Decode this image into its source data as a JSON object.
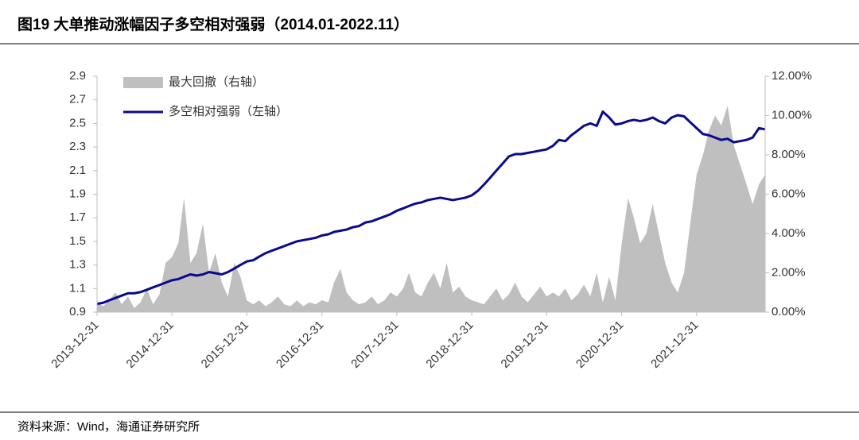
{
  "title": "图19 大单推动涨幅因子多空相对强弱（2014.01-2022.11）",
  "source": "资料来源：Wind，海通证券研究所",
  "chart_data": {
    "type": "line",
    "x": [
      "2013-12-31",
      "2014-01-31",
      "2014-02-28",
      "2014-03-31",
      "2014-04-30",
      "2014-05-31",
      "2014-06-30",
      "2014-07-31",
      "2014-08-31",
      "2014-09-30",
      "2014-10-31",
      "2014-11-30",
      "2014-12-31",
      "2015-01-31",
      "2015-02-28",
      "2015-03-31",
      "2015-04-30",
      "2015-05-31",
      "2015-06-30",
      "2015-07-31",
      "2015-08-31",
      "2015-09-30",
      "2015-10-31",
      "2015-11-30",
      "2015-12-31",
      "2016-01-31",
      "2016-02-29",
      "2016-03-31",
      "2016-04-30",
      "2016-05-31",
      "2016-06-30",
      "2016-07-31",
      "2016-08-31",
      "2016-09-30",
      "2016-10-31",
      "2016-11-30",
      "2016-12-31",
      "2017-01-31",
      "2017-02-28",
      "2017-03-31",
      "2017-04-30",
      "2017-05-31",
      "2017-06-30",
      "2017-07-31",
      "2017-08-31",
      "2017-09-30",
      "2017-10-31",
      "2017-11-30",
      "2017-12-31",
      "2018-01-31",
      "2018-02-28",
      "2018-03-31",
      "2018-04-30",
      "2018-05-31",
      "2018-06-30",
      "2018-07-31",
      "2018-08-31",
      "2018-09-30",
      "2018-10-31",
      "2018-11-30",
      "2018-12-31",
      "2019-01-31",
      "2019-02-28",
      "2019-03-31",
      "2019-04-30",
      "2019-05-31",
      "2019-06-30",
      "2019-07-31",
      "2019-08-31",
      "2019-09-30",
      "2019-10-31",
      "2019-11-30",
      "2019-12-31",
      "2020-01-31",
      "2020-02-29",
      "2020-03-31",
      "2020-04-30",
      "2020-05-31",
      "2020-06-30",
      "2020-07-31",
      "2020-08-31",
      "2020-09-30",
      "2020-10-31",
      "2020-11-30",
      "2020-12-31",
      "2021-01-31",
      "2021-02-28",
      "2021-03-31",
      "2021-04-30",
      "2021-05-31",
      "2021-06-30",
      "2021-07-31",
      "2021-08-31",
      "2021-09-30",
      "2021-10-31",
      "2021-11-30",
      "2021-12-31",
      "2022-01-31",
      "2022-02-28",
      "2022-03-31",
      "2022-04-30",
      "2022-05-31",
      "2022-06-30",
      "2022-07-31",
      "2022-08-31",
      "2022-09-30",
      "2022-10-31",
      "2022-11-30"
    ],
    "series": [
      {
        "name": "最大回撤（右轴）",
        "type": "area",
        "axis": "y2",
        "color": "#bfbfbf",
        "values": [
          0.5,
          0.3,
          0.6,
          1.0,
          0.4,
          0.8,
          0.2,
          0.5,
          1.2,
          0.4,
          0.9,
          2.5,
          2.8,
          3.5,
          5.8,
          2.5,
          3.0,
          4.5,
          2.0,
          3.0,
          1.5,
          0.8,
          2.5,
          1.8,
          0.6,
          0.4,
          0.6,
          0.3,
          0.5,
          0.8,
          0.4,
          0.3,
          0.6,
          0.3,
          0.5,
          0.4,
          0.6,
          0.5,
          1.5,
          2.2,
          1.0,
          0.6,
          0.4,
          0.5,
          0.8,
          0.4,
          0.6,
          1.0,
          0.8,
          1.2,
          2.0,
          1.0,
          0.8,
          1.5,
          2.0,
          1.2,
          2.5,
          1.0,
          1.3,
          0.8,
          0.6,
          0.5,
          0.4,
          0.8,
          1.2,
          0.6,
          0.9,
          1.5,
          0.8,
          0.5,
          0.9,
          1.3,
          0.8,
          1.0,
          0.8,
          1.2,
          0.6,
          0.9,
          1.4,
          0.8,
          2.0,
          0.5,
          1.8,
          0.6,
          3.5,
          5.8,
          4.8,
          3.5,
          4.0,
          5.5,
          4.0,
          2.5,
          1.5,
          1.0,
          2.0,
          4.5,
          7.0,
          8.0,
          9.2,
          10.0,
          9.5,
          10.5,
          8.5,
          7.5,
          6.5,
          5.5,
          6.5,
          7.0
        ]
      },
      {
        "name": "多空相对强弱（左轴）",
        "type": "line",
        "color": "#0a0a8c",
        "values": [
          0.97,
          0.98,
          1.0,
          1.02,
          1.04,
          1.06,
          1.06,
          1.07,
          1.09,
          1.11,
          1.13,
          1.15,
          1.17,
          1.18,
          1.2,
          1.22,
          1.21,
          1.22,
          1.24,
          1.23,
          1.22,
          1.24,
          1.27,
          1.3,
          1.33,
          1.34,
          1.37,
          1.4,
          1.42,
          1.44,
          1.46,
          1.48,
          1.5,
          1.51,
          1.52,
          1.53,
          1.55,
          1.56,
          1.58,
          1.59,
          1.6,
          1.62,
          1.63,
          1.66,
          1.67,
          1.69,
          1.71,
          1.73,
          1.76,
          1.78,
          1.8,
          1.82,
          1.83,
          1.85,
          1.86,
          1.87,
          1.86,
          1.85,
          1.86,
          1.87,
          1.89,
          1.93,
          1.98,
          2.04,
          2.1,
          2.16,
          2.22,
          2.24,
          2.24,
          2.25,
          2.26,
          2.27,
          2.28,
          2.31,
          2.36,
          2.35,
          2.4,
          2.44,
          2.48,
          2.5,
          2.48,
          2.6,
          2.55,
          2.49,
          2.5,
          2.52,
          2.53,
          2.52,
          2.53,
          2.55,
          2.52,
          2.5,
          2.55,
          2.57,
          2.56,
          2.51,
          2.46,
          2.41,
          2.4,
          2.38,
          2.36,
          2.37,
          2.34,
          2.35,
          2.36,
          2.38,
          2.46,
          2.45
        ]
      }
    ],
    "xlim": [
      "2013-12-31",
      "2022-11-30"
    ],
    "xticks": [
      "2013-12-31",
      "2014-12-31",
      "2015-12-31",
      "2016-12-31",
      "2017-12-31",
      "2018-12-31",
      "2019-12-31",
      "2020-12-31",
      "2021-12-31"
    ],
    "ylim": [
      0.9,
      2.9
    ],
    "yticks": [
      0.9,
      1.1,
      1.3,
      1.5,
      1.7,
      1.9,
      2.1,
      2.3,
      2.5,
      2.7,
      2.9
    ],
    "y2lim": [
      0,
      12
    ],
    "y2ticks": [
      {
        "value": 0,
        "label": "0.00%"
      },
      {
        "value": 2,
        "label": "2.00%"
      },
      {
        "value": 4,
        "label": "4.00%"
      },
      {
        "value": 6,
        "label": "6.00%"
      },
      {
        "value": 8,
        "label": "8.00%"
      },
      {
        "value": 10,
        "label": "10.00%"
      },
      {
        "value": 12,
        "label": "12.00%"
      }
    ],
    "legend": "upper left"
  }
}
